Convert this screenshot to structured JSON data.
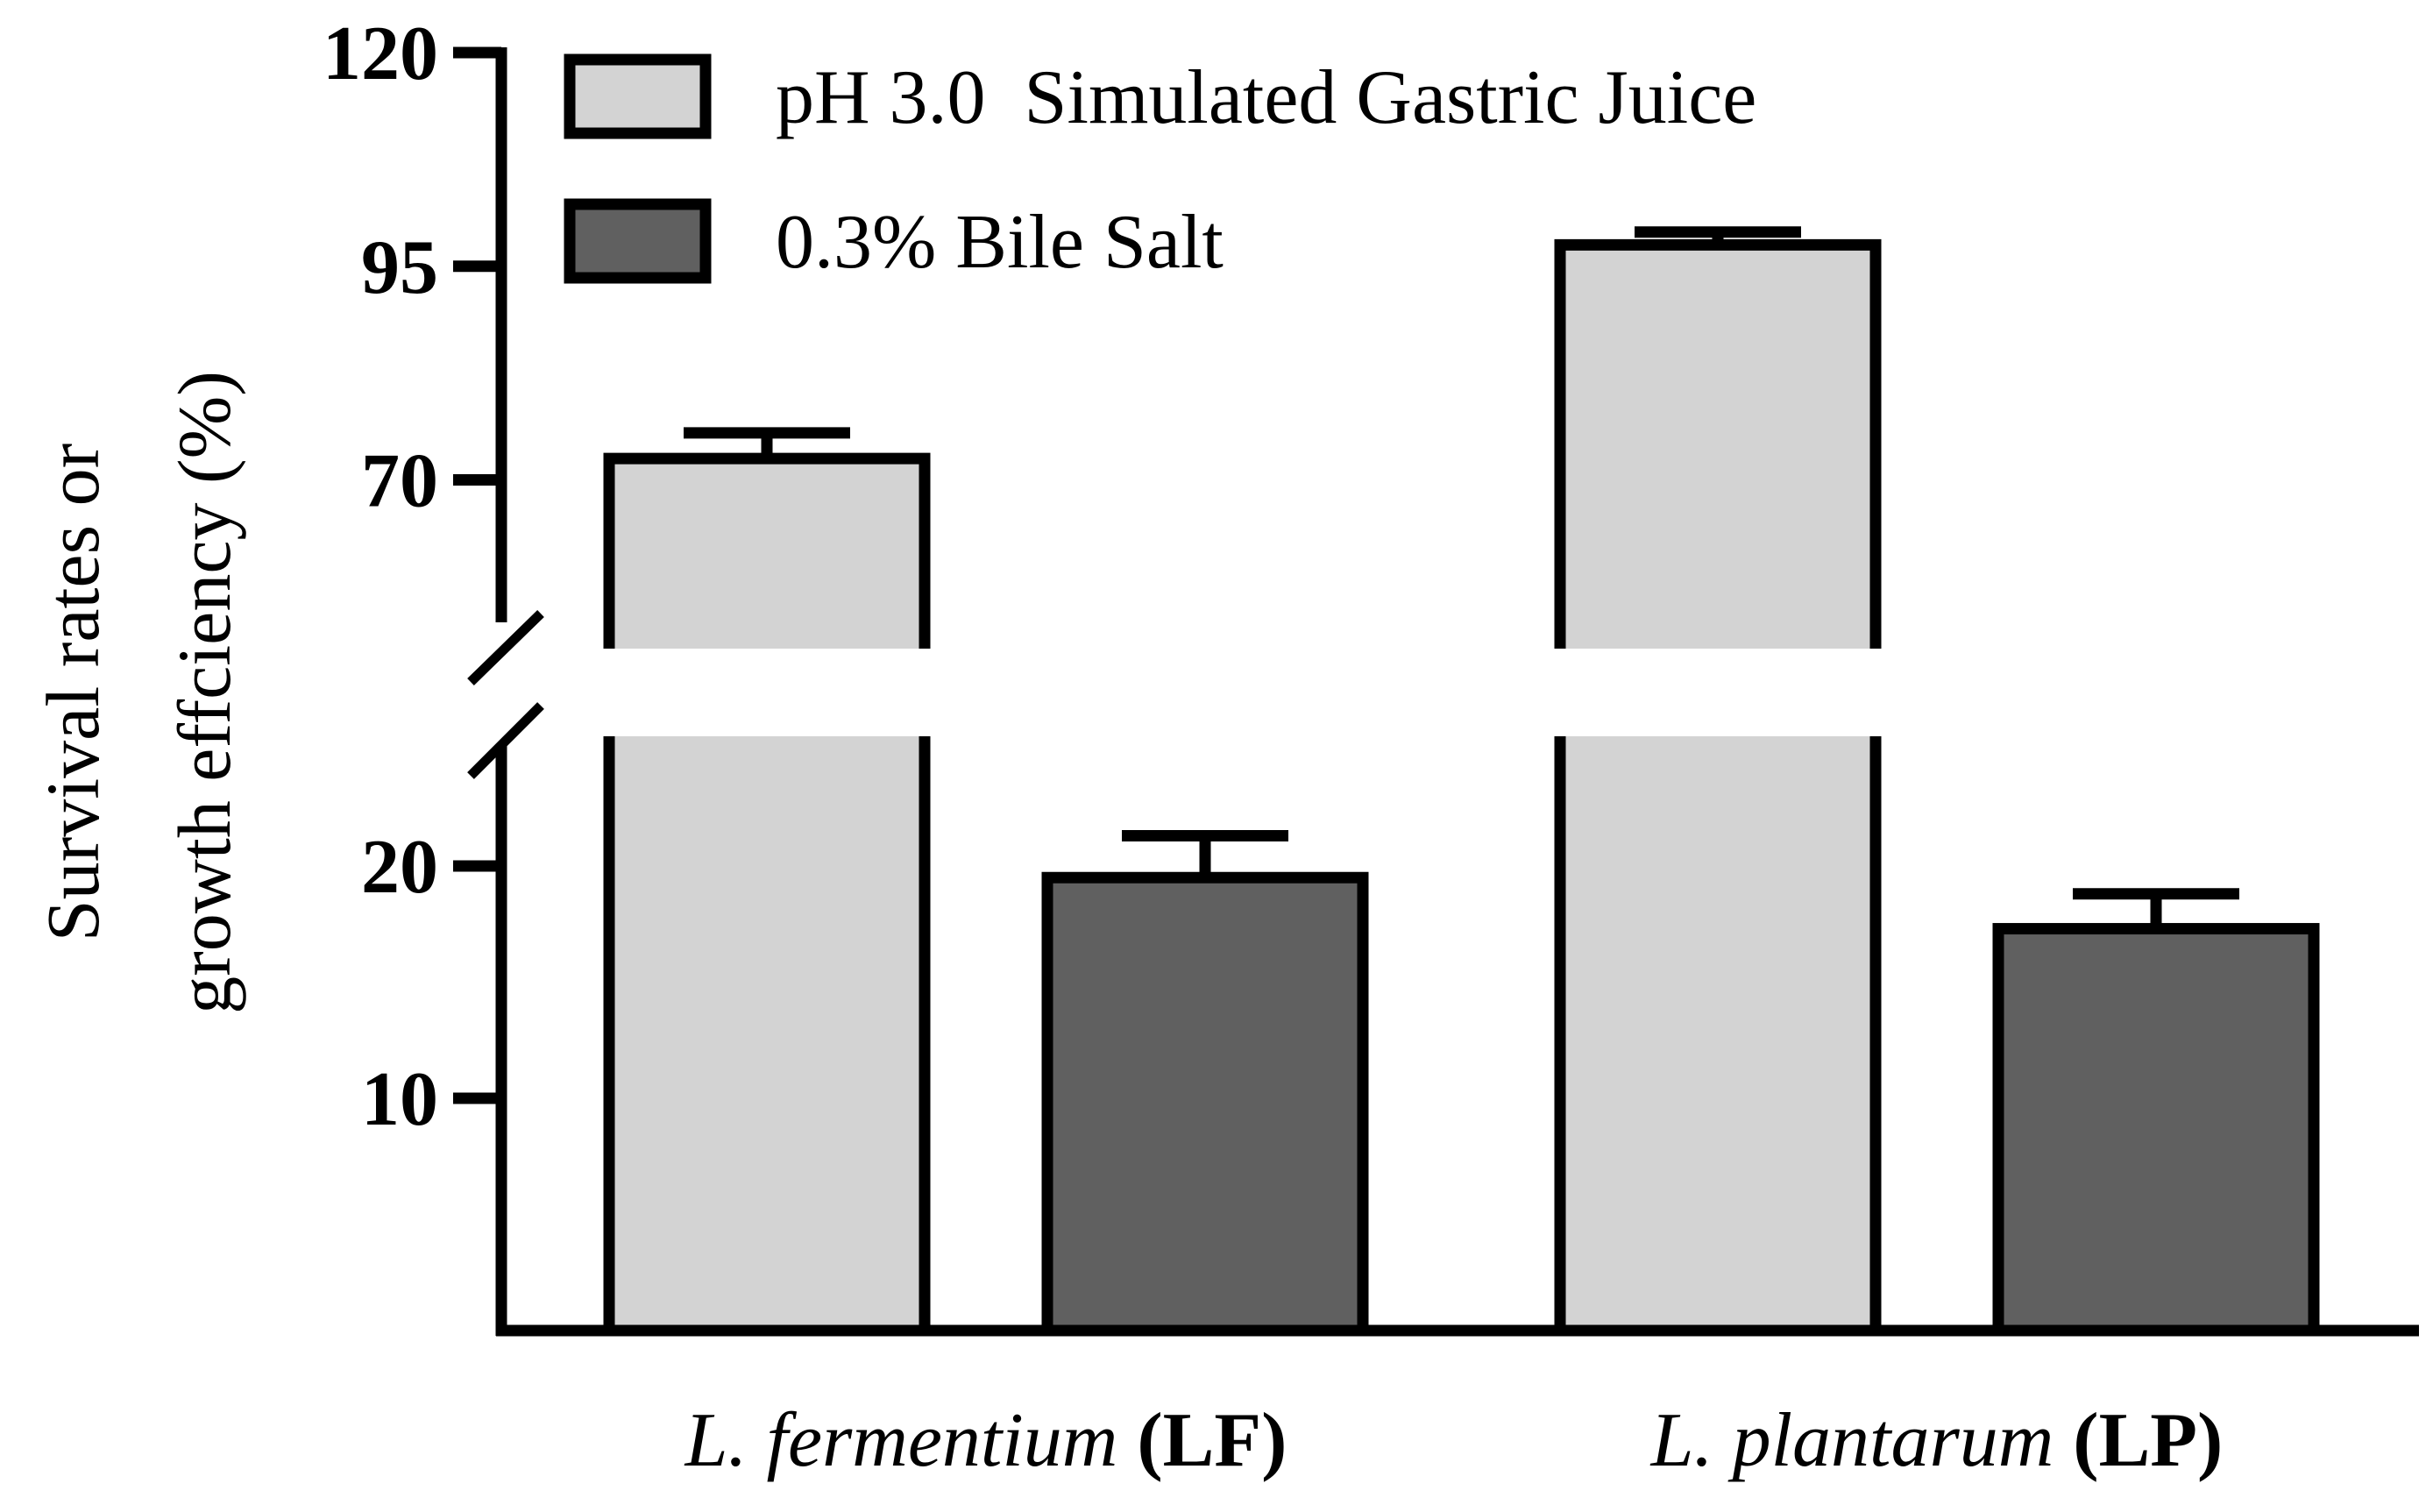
{
  "chart_data": {
    "type": "bar",
    "title": "",
    "ylabel_lines": [
      "Survival rates or",
      "growth effciency (%)"
    ],
    "xlabel": "",
    "categories": [
      {
        "italic": "L. fermentium",
        "bold": "(LF)"
      },
      {
        "italic": "L. plantarum",
        "bold": "(LP)"
      }
    ],
    "series": [
      {
        "name": "pH 3.0  Simulated Gastric Juice",
        "color": "#d3d3d3",
        "values": [
          72.5,
          97.5
        ],
        "errors": [
          3.0,
          1.5
        ]
      },
      {
        "name": "0.3% Bile Salt",
        "color": "#606060",
        "values": [
          19.5,
          17.3
        ],
        "errors": [
          1.8,
          1.5
        ]
      }
    ],
    "y_axis": {
      "broken": true,
      "lower_segment": [
        0,
        25
      ],
      "upper_segment": [
        50,
        120
      ],
      "ticks": [
        10,
        20,
        70,
        95,
        120
      ],
      "tick_labels": [
        "10",
        "20",
        "70",
        "95",
        "120"
      ]
    },
    "legend_position": "top-left"
  }
}
